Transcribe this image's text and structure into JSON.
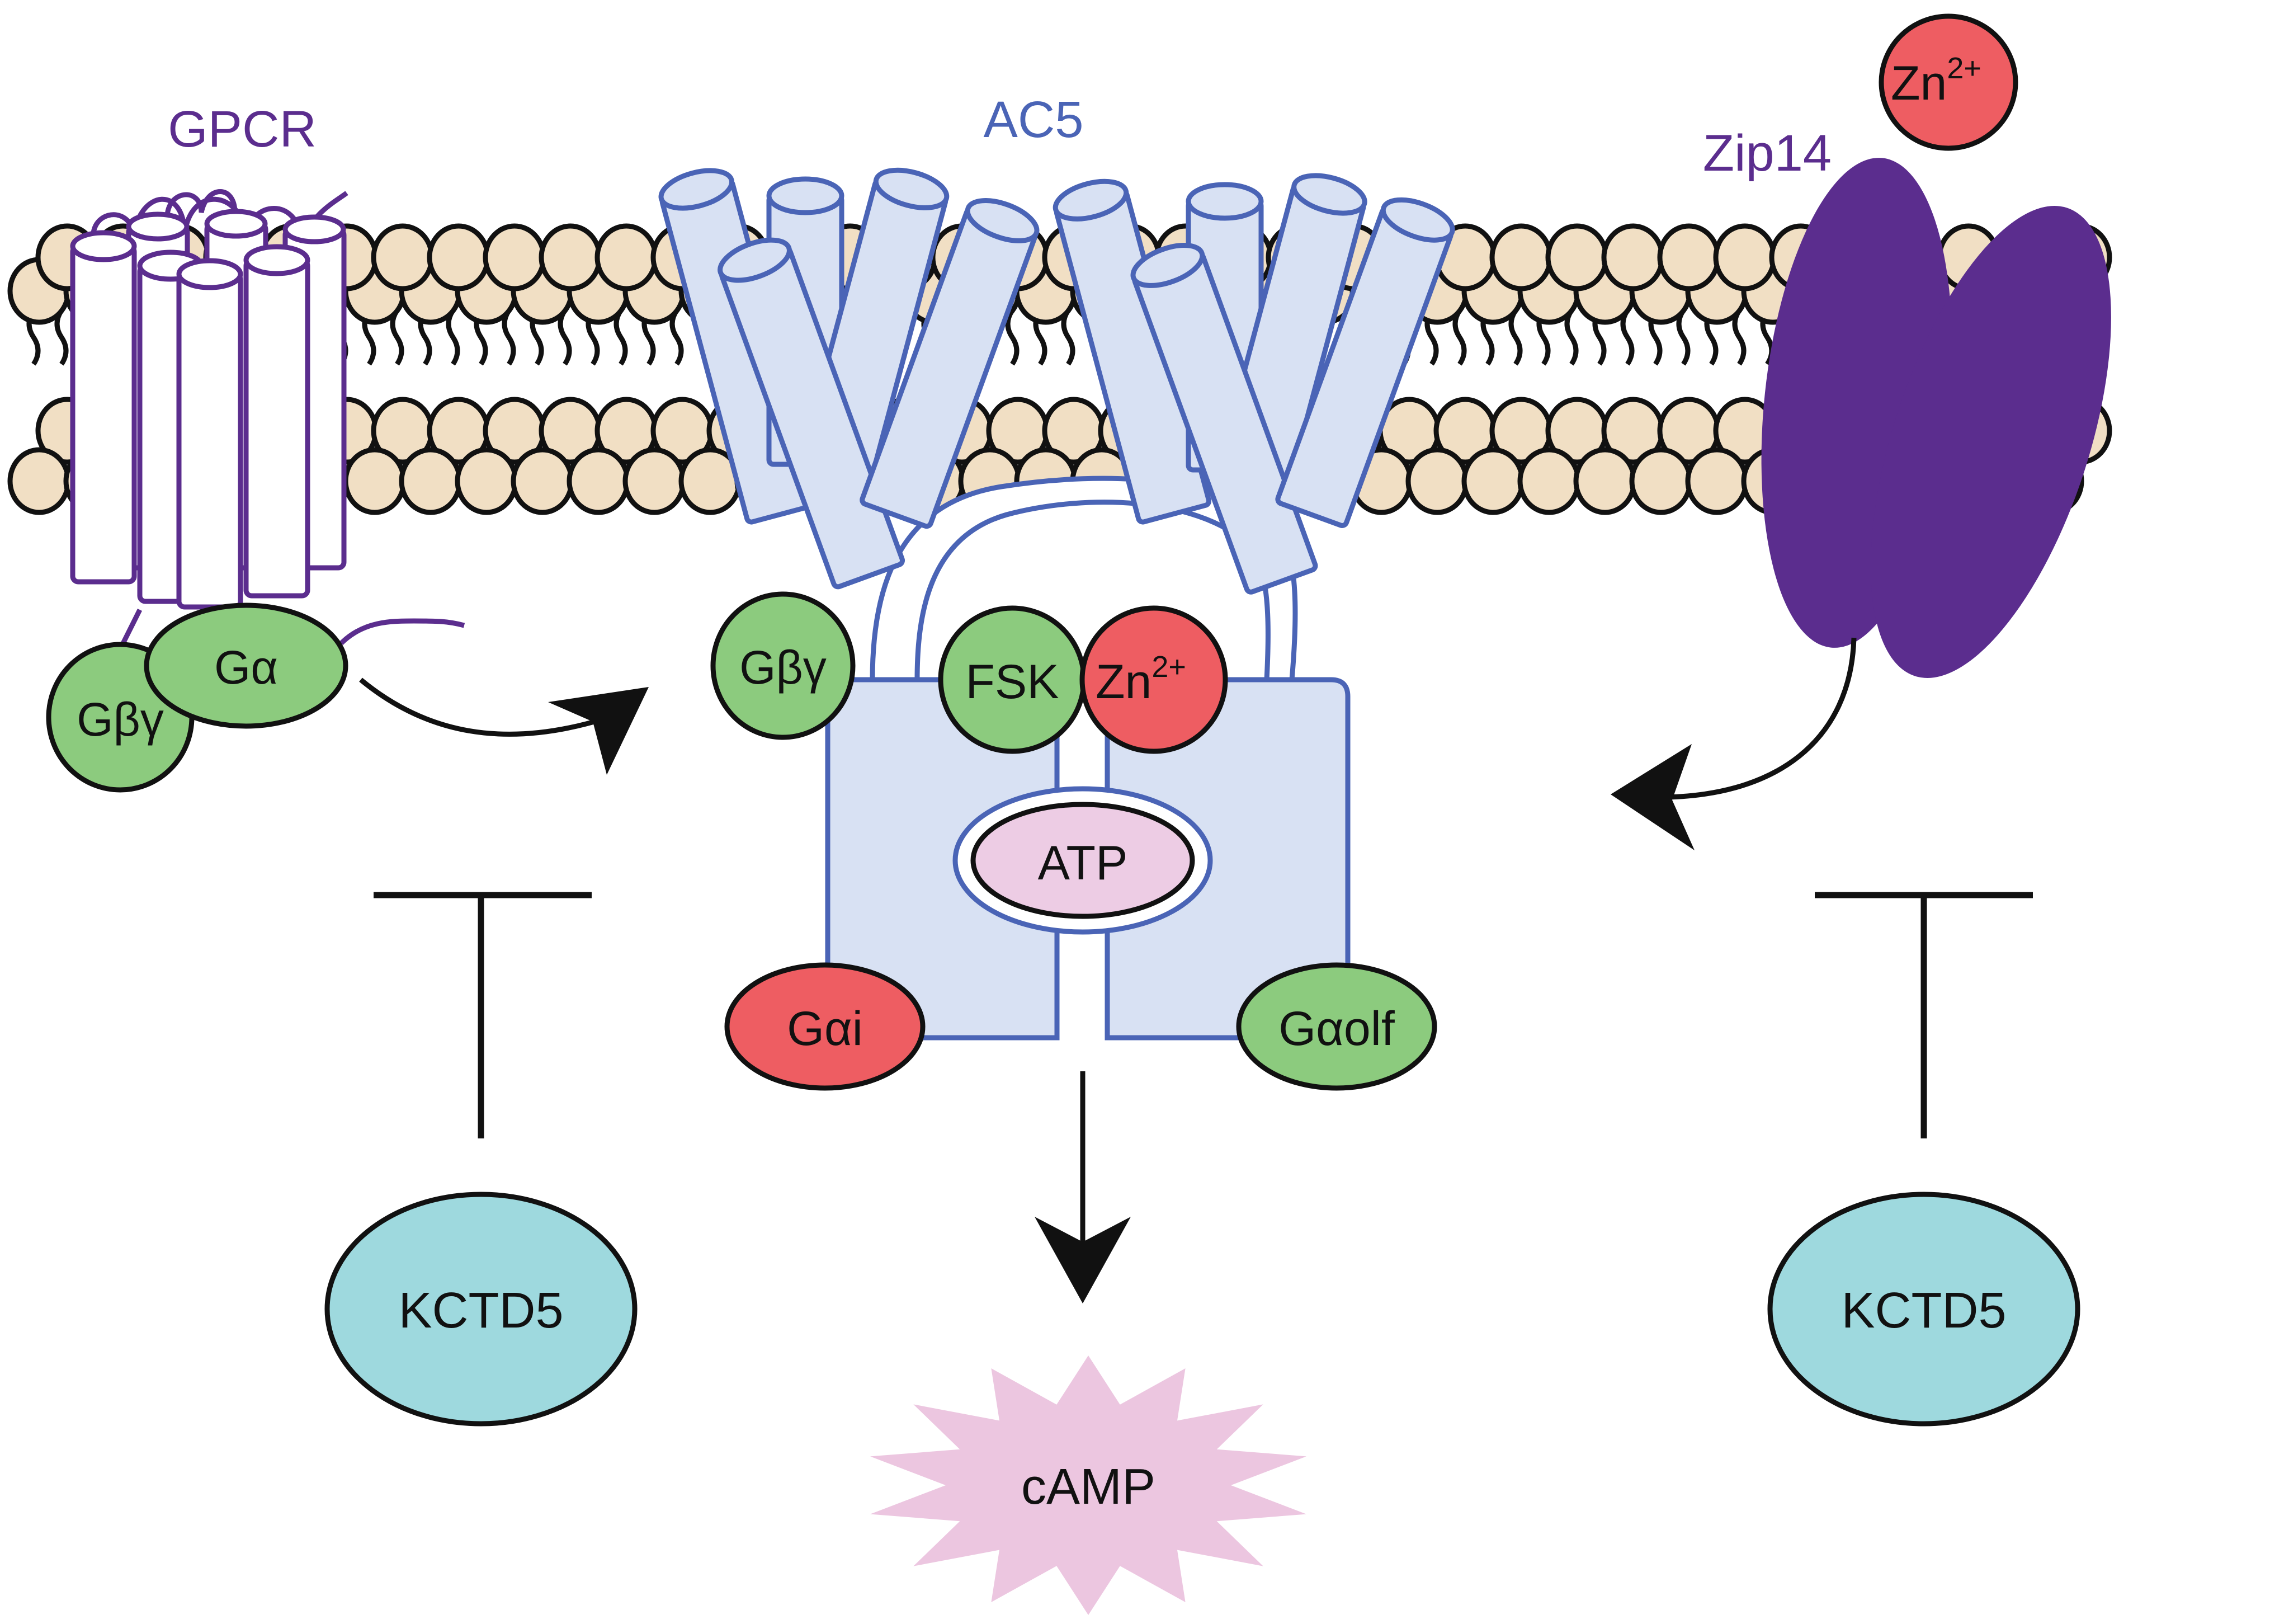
{
  "labels": {
    "gpcr": "GPCR",
    "ac5": "AC5",
    "zip14": "Zip14",
    "zn_ion": "Zn",
    "zn_ion_sup": "2+"
  },
  "molecules": {
    "g_beta_gamma_left": "Gβγ",
    "g_alpha": "Gα",
    "g_beta_gamma_ac5": "Gβγ",
    "fsk": "FSK",
    "zn_bound": "Zn",
    "zn_bound_sup": "2+",
    "atp": "ATP",
    "g_alpha_i": "Gαi",
    "g_alpha_olf": "Gαolf",
    "camp": "cAMP",
    "kctd5_left": "KCTD5",
    "kctd5_right": "KCTD5"
  },
  "colors": {
    "membrane_head": "#f1dfc4",
    "ac5_fill": "#d8e1f3",
    "ac5_stroke": "#4a64b6",
    "gpcr_purple": "#5b2d8e",
    "green_protein": "#8ccb7e",
    "red_protein": "#ee5d62",
    "atp_fill": "#edcce4",
    "camp_fill": "#ecc6e0",
    "kctd5_fill": "#9ed9de"
  },
  "icons": {
    "activation_arrow": "curved-arrow-icon",
    "inhibition": "t-bar-inhibition-icon",
    "production": "down-arrow-icon"
  }
}
